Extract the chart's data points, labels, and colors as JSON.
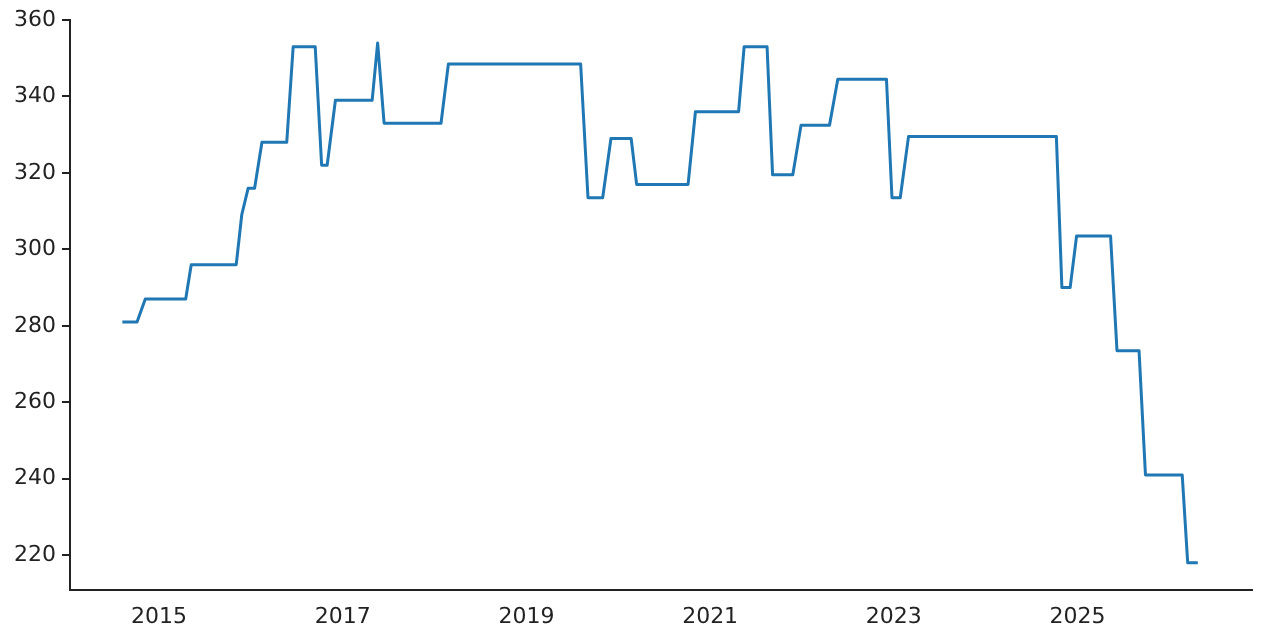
{
  "chart_data": {
    "type": "line",
    "x": [
      2014.6,
      2014.76,
      2014.85,
      2015.29,
      2015.35,
      2015.84,
      2015.9,
      2015.97,
      2016.04,
      2016.12,
      2016.39,
      2016.46,
      2016.7,
      2016.77,
      2016.83,
      2016.92,
      2017.32,
      2017.38,
      2017.45,
      2018.07,
      2018.15,
      2019.59,
      2019.67,
      2019.83,
      2019.92,
      2020.14,
      2020.2,
      2020.76,
      2020.84,
      2021.31,
      2021.37,
      2021.62,
      2021.68,
      2021.9,
      2021.99,
      2022.3,
      2022.39,
      2022.92,
      2022.98,
      2023.07,
      2023.16,
      2024.77,
      2024.83,
      2024.92,
      2024.99,
      2025.36,
      2025.43,
      2025.67,
      2025.74,
      2026.14,
      2026.2,
      2026.31
    ],
    "series": [
      {
        "color": "#1f77b4",
        "values": [
          281,
          281,
          287,
          287,
          296,
          296,
          309,
          316,
          316,
          328,
          328,
          353,
          353,
          322,
          322,
          339,
          339,
          354,
          333,
          333,
          348.5,
          348.5,
          313.5,
          313.5,
          329,
          329,
          317,
          317,
          336,
          336,
          353,
          353,
          319.5,
          319.5,
          332.5,
          332.5,
          344.5,
          344.5,
          313.5,
          313.5,
          329.5,
          329.5,
          290,
          290,
          303.5,
          303.5,
          273.5,
          273.5,
          241,
          241,
          218,
          218
        ]
      }
    ],
    "xlim": [
      2014.03,
      2026.9
    ],
    "ylim": [
      211,
      360
    ],
    "xticks": [
      2015,
      2017,
      2019,
      2021,
      2023,
      2025
    ],
    "yticks": [
      220,
      240,
      260,
      280,
      300,
      320,
      340,
      360
    ],
    "grid": false,
    "legend": false,
    "marker": "none",
    "line_style": "solid"
  }
}
